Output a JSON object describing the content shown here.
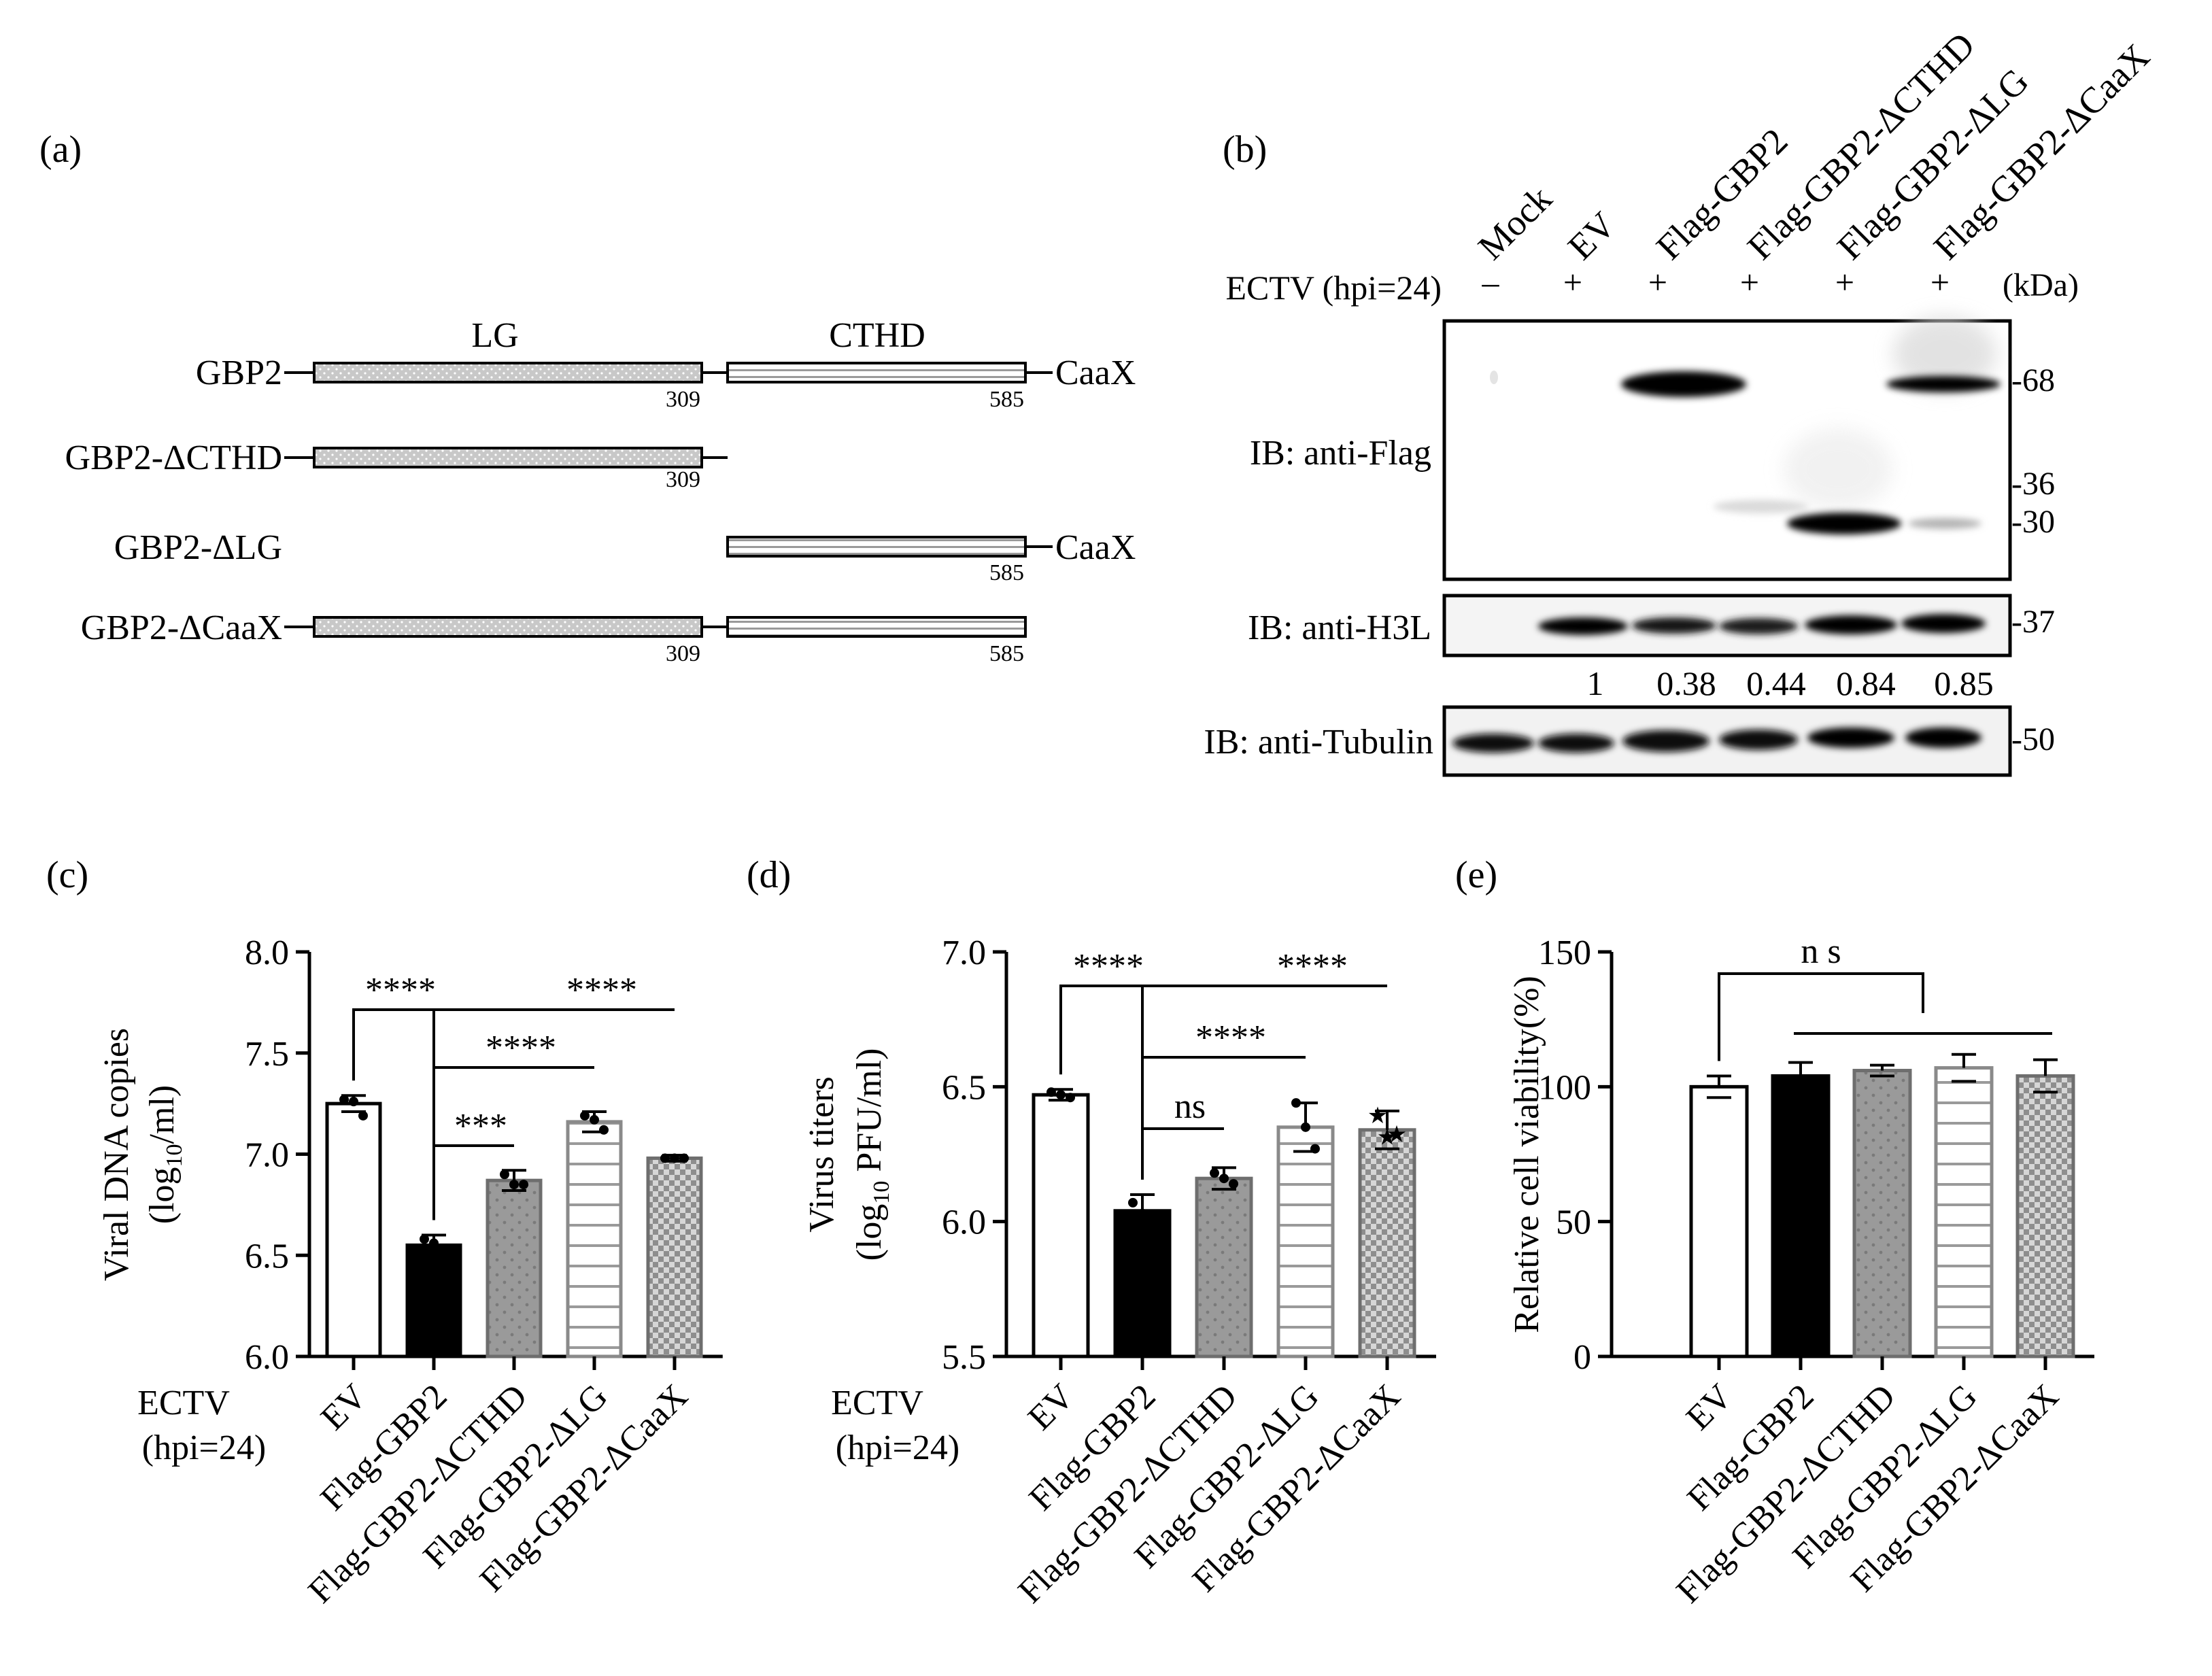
{
  "panels": {
    "a": {
      "label": "(a)",
      "domain_labels": {
        "lg": "LG",
        "cthd": "CTHD",
        "caax": "CaaX"
      },
      "constructs": [
        {
          "name": "GBP2",
          "lg_end": "309",
          "cthd_end": "585"
        },
        {
          "name": "GBP2-ΔCTHD",
          "lg_end": "309"
        },
        {
          "name": "GBP2-ΔLG",
          "cthd_end": "585"
        },
        {
          "name": "GBP2-ΔCaaX",
          "lg_end": "309",
          "cthd_end": "585"
        }
      ]
    },
    "b": {
      "label": "(b)",
      "lanes": [
        "Mock",
        "EV",
        "Flag-GBP2",
        "Flag-GBP2-ΔCTHD",
        "Flag-GBP2-ΔLG",
        "Flag-GBP2-ΔCaaX"
      ],
      "infection_label": "ECTV (hpi=24)",
      "infection_marks": [
        "–",
        "+",
        "+",
        "+",
        "+",
        "+"
      ],
      "kda_label": "(kDa)",
      "blots": [
        {
          "label": "IB: anti-Flag",
          "markers": [
            "-68",
            "-36",
            "-30"
          ]
        },
        {
          "label": "IB: anti-H3L",
          "markers": [
            "-37"
          ]
        },
        {
          "label": "IB: anti-Tubulin",
          "markers": [
            "-50"
          ]
        }
      ],
      "quantification": [
        "1",
        "0.38",
        "0.44",
        "0.84",
        "0.85"
      ]
    },
    "c": {
      "label": "(c)",
      "infection_label": [
        "ECTV",
        "(hpi=24)"
      ]
    },
    "d": {
      "label": "(d)",
      "infection_label": [
        "ECTV",
        "(hpi=24)"
      ]
    },
    "e": {
      "label": "(e)"
    }
  },
  "colors": {
    "ev": "#ffffff",
    "gbp2": "#000000",
    "dcthd": "#9a9a9a",
    "dlg": "#ffffff",
    "dcaax": "#a8a8a8",
    "lg_domain": "#c8c8c8"
  },
  "chart_data": [
    {
      "panel": "c",
      "type": "bar",
      "categories": [
        "EV",
        "Flag-GBP2",
        "Flag-GBP2-ΔCTHD",
        "Flag-GBP2-ΔLG",
        "Flag-GBP2-ΔCaaX"
      ],
      "values": [
        7.25,
        6.55,
        6.87,
        7.16,
        6.98
      ],
      "errors": [
        0.04,
        0.05,
        0.05,
        0.05,
        0.015
      ],
      "points": [
        [
          7.27,
          7.26,
          7.19
        ],
        [
          6.58,
          6.56,
          6.51
        ],
        [
          6.9,
          6.85,
          6.85
        ],
        [
          7.19,
          7.17,
          7.12
        ],
        [
          6.98,
          6.98,
          6.98
        ]
      ],
      "ylabel": [
        "Viral  DNA copies",
        "(log",
        "10",
        "/ml)"
      ],
      "ylim": [
        6.0,
        8.0
      ],
      "yticks": [
        6.0,
        6.5,
        7.0,
        7.5,
        8.0
      ],
      "ytick_labels": [
        "6.0",
        "6.5",
        "7.0",
        "7.5",
        "8.0"
      ],
      "significance": [
        {
          "from": 0,
          "to": 1,
          "label": "****"
        },
        {
          "from": 1,
          "to": 2,
          "label": "***"
        },
        {
          "from": 1,
          "to": 3,
          "label": "****"
        },
        {
          "from": 1,
          "to": 4,
          "label": "****"
        }
      ]
    },
    {
      "panel": "d",
      "type": "bar",
      "categories": [
        "EV",
        "Flag-GBP2",
        "Flag-GBP2-ΔCTHD",
        "Flag-GBP2-ΔLG",
        "Flag-GBP2-ΔCaaX"
      ],
      "values": [
        6.47,
        6.04,
        6.16,
        6.35,
        6.34
      ],
      "errors": [
        0.02,
        0.06,
        0.04,
        0.09,
        0.07
      ],
      "points": [
        [
          6.48,
          6.47,
          6.46
        ],
        [
          6.07,
          6.03,
          6.0
        ],
        [
          6.18,
          6.16,
          6.14
        ],
        [
          6.44,
          6.35,
          6.27
        ],
        [
          6.39,
          6.31,
          6.32
        ]
      ],
      "ylabel": [
        "Virus titers",
        "(log",
        "10",
        " PFU/ml)"
      ],
      "ylim": [
        5.5,
        7.0
      ],
      "yticks": [
        5.5,
        6.0,
        6.5,
        7.0
      ],
      "ytick_labels": [
        "5.5",
        "6.0",
        "6.5",
        "7.0"
      ],
      "significance": [
        {
          "from": 0,
          "to": 1,
          "label": "****"
        },
        {
          "from": 1,
          "to": 2,
          "label": "ns"
        },
        {
          "from": 1,
          "to": 3,
          "label": "****"
        },
        {
          "from": 1,
          "to": 4,
          "label": "****"
        }
      ]
    },
    {
      "panel": "e",
      "type": "bar",
      "categories": [
        "EV",
        "Flag-GBP2",
        "Flag-GBP2-ΔCTHD",
        "Flag-GBP2-ΔLG",
        "Flag-GBP2-ΔCaaX"
      ],
      "values": [
        100,
        104,
        106,
        107,
        104
      ],
      "errors": [
        4,
        5,
        2,
        5,
        6
      ],
      "ylabel": [
        "Relative cell viability(%)"
      ],
      "ylim": [
        0,
        150
      ],
      "yticks": [
        0,
        50,
        100,
        150
      ],
      "ytick_labels": [
        "0",
        "50",
        "100",
        "150"
      ],
      "significance": [
        {
          "from": 0,
          "to": [
            1,
            4
          ],
          "label": "n s"
        }
      ]
    }
  ]
}
